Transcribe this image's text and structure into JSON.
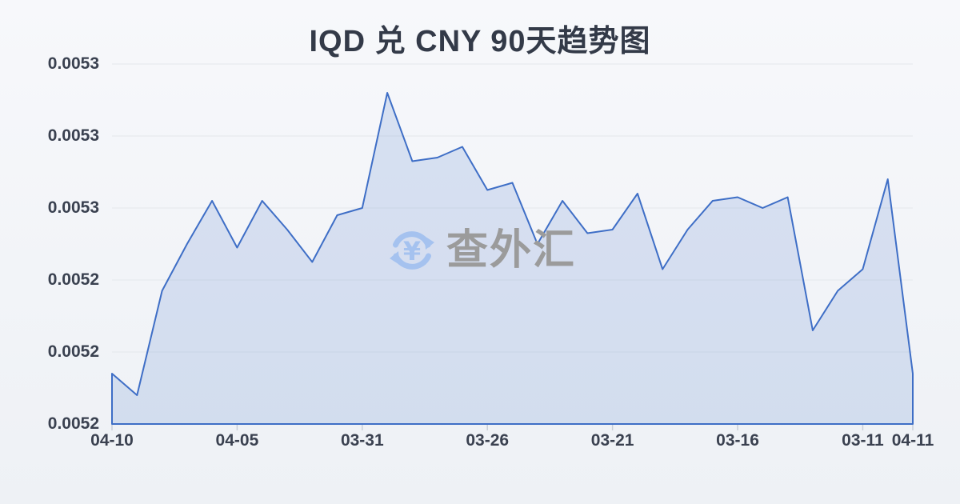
{
  "title": "IQD 兑 CNY 90天趋势图",
  "watermark": {
    "text": "查外汇",
    "icon": "currency-exchange-refresh-icon"
  },
  "chart_data": {
    "type": "area",
    "title": "IQD 兑 CNY 90天趋势图",
    "xlabel": "",
    "ylabel": "",
    "grid": true,
    "legend": false,
    "y_min": 0.0052,
    "y_max": 0.0053,
    "y_tick_labels_top_to_bottom": [
      "0.0053",
      "0.0053",
      "0.0053",
      "0.0052",
      "0.0052",
      "0.0052"
    ],
    "x_tick_labels": [
      "04-10",
      "04-05",
      "03-31",
      "03-26",
      "03-21",
      "03-16",
      "03-11",
      "04-11"
    ],
    "x_tick_indices": [
      0,
      5,
      10,
      15,
      20,
      25,
      30,
      32
    ],
    "values": [
      0.005214,
      0.005208,
      0.005237,
      0.00525,
      0.005262,
      0.005249,
      0.005262,
      0.005254,
      0.005245,
      0.005258,
      0.00526,
      0.005292,
      0.005273,
      0.005274,
      0.005277,
      0.005265,
      0.005267,
      0.00525,
      0.005262,
      0.005253,
      0.005254,
      0.005264,
      0.005243,
      0.005254,
      0.005262,
      0.005263,
      0.00526,
      0.005263,
      0.005226,
      0.005237,
      0.005243,
      0.005268,
      0.005214
    ],
    "colors": {
      "line": "#3e6ec6",
      "fill": "rgba(62,111,196,0.16)",
      "grid": "#e4e7eb",
      "tick": "#c9cfd8",
      "axis_label": "#3a4150",
      "title": "#333a48",
      "watermark_icon": "#a5c2ef",
      "watermark_text": "#9b9b9b"
    }
  }
}
